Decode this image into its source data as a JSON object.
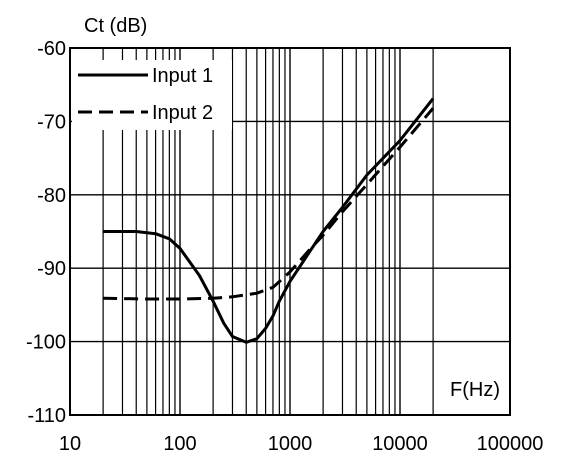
{
  "chart_data": {
    "type": "line",
    "xscale": "log",
    "xlim": [
      10,
      100000
    ],
    "ylim": [
      -110,
      -60
    ],
    "xticks": [
      10,
      100,
      1000,
      10000,
      100000
    ],
    "xtick_labels": [
      "10",
      "100",
      "1000",
      "10000",
      "100000"
    ],
    "yticks": [
      -60,
      -70,
      -80,
      -90,
      -100,
      -110
    ],
    "ytick_labels": [
      "-60",
      "-70",
      "-80",
      "-90",
      "-100",
      "-110"
    ],
    "xlabel": "F(Hz)",
    "ylabel": "Ct (dB)",
    "grid": true,
    "legend_position": "top-left",
    "series": [
      {
        "name": "Input 1",
        "style": "solid",
        "color": "#000000",
        "x": [
          20,
          40,
          60,
          80,
          100,
          150,
          200,
          250,
          300,
          400,
          500,
          600,
          700,
          800,
          1000,
          1500,
          2000,
          3000,
          5000,
          10000,
          20000
        ],
        "y": [
          -85,
          -85,
          -85.3,
          -86,
          -87.3,
          -91,
          -94.5,
          -97.5,
          -99.3,
          -100.1,
          -99.6,
          -98.2,
          -96.5,
          -94.5,
          -91.8,
          -87.8,
          -85,
          -81.7,
          -77.3,
          -72.6,
          -66.9
        ]
      },
      {
        "name": "Input 2",
        "style": "dashed",
        "color": "#000000",
        "x": [
          20,
          50,
          100,
          200,
          300,
          500,
          700,
          1000,
          1500,
          2000,
          3000,
          5000,
          10000,
          20000
        ],
        "y": [
          -94.1,
          -94.2,
          -94.2,
          -94.1,
          -93.9,
          -93.4,
          -92.6,
          -90.5,
          -87.5,
          -85.5,
          -82.3,
          -78.6,
          -73.5,
          -68.2
        ]
      }
    ]
  }
}
